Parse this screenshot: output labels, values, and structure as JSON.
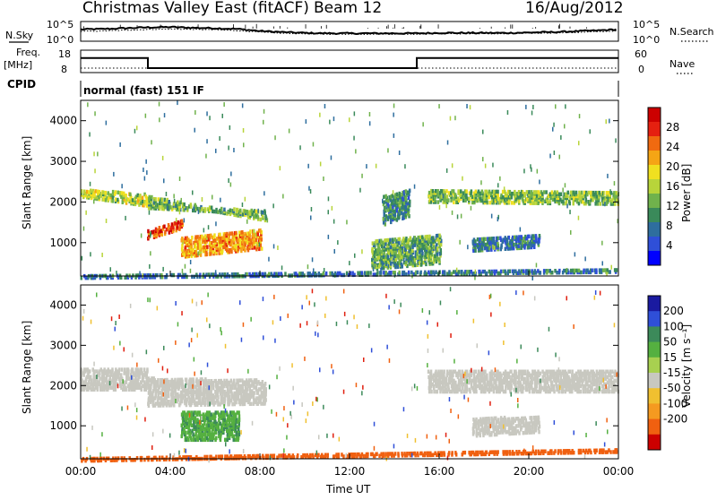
{
  "header": {
    "station": "Christmas Valley East (fitACF)",
    "beam": "Beam 12",
    "date": "16/Aug/2012"
  },
  "colors": {
    "power": [
      "#0000ff",
      "#2f4fd8",
      "#2e6e9e",
      "#3a8a5a",
      "#70b24c",
      "#b8d43a",
      "#f0e020",
      "#f5a515",
      "#f06a10",
      "#e52010",
      "#cc0000"
    ],
    "velocity": [
      "#1a1aa0",
      "#2f4fd8",
      "#3c8a5a",
      "#55b040",
      "#a8d050",
      "#c8c8c0",
      "#c0c0b8",
      "#f0c030",
      "#f59a20",
      "#f06010",
      "#e02010",
      "#cc0000"
    ]
  },
  "chart_data": [
    {
      "name": "sky-search-noise",
      "type": "line",
      "left_label": "N.Sky",
      "right_label": "N.Search",
      "y_ticks_left": [
        "10^5",
        "10^0"
      ],
      "y_ticks_right": [
        "10^5",
        "10^0"
      ],
      "x_hours": [
        0,
        1,
        2,
        3,
        4,
        5,
        6,
        7,
        8,
        9,
        10,
        11,
        12,
        13,
        14,
        15,
        16,
        17,
        18,
        19,
        20,
        21,
        22,
        23,
        24
      ],
      "sky_log": [
        3.0,
        3.1,
        3.3,
        3.5,
        3.6,
        3.4,
        3.3,
        3.1,
        2.6,
        2.3,
        2.1,
        2.0,
        2.0,
        2.0,
        2.0,
        2.0,
        2.1,
        2.1,
        2.1,
        2.1,
        2.2,
        2.3,
        2.5,
        2.7,
        3.0
      ],
      "search_log": [
        2.5,
        2.6,
        2.8,
        3.0,
        3.1,
        3.0,
        2.9,
        2.7,
        2.3,
        2.0,
        1.9,
        1.8,
        1.8,
        1.8,
        1.8,
        1.8,
        1.9,
        1.9,
        1.9,
        1.9,
        2.0,
        2.1,
        2.2,
        2.4,
        2.6
      ],
      "ylim": [
        0,
        5
      ]
    },
    {
      "name": "frequency-nave",
      "type": "line",
      "left_label_1": "Freq.",
      "left_label_2": "[MHz]",
      "right_label": "Nave",
      "y_ticks_left": [
        "18",
        "8"
      ],
      "y_ticks_right": [
        "60",
        "0"
      ],
      "freq_steps": [
        {
          "x0": 0,
          "x1": 3,
          "v": 14.5
        },
        {
          "x0": 3,
          "x1": 15,
          "v": 10.0
        },
        {
          "x0": 15,
          "x1": 24,
          "v": 14.5
        }
      ],
      "nave_level": 12,
      "freq_ylim": [
        8,
        18
      ],
      "nave_ylim": [
        0,
        60
      ]
    },
    {
      "name": "cpid",
      "type": "table",
      "label": "CPID",
      "value": "normal (fast) 151 IF"
    },
    {
      "name": "power",
      "type": "heatmap",
      "ylabel": "Slant Range [km]",
      "colorbar_label": "Power [dB]",
      "y_ticks": [
        1000,
        2000,
        3000,
        4000
      ],
      "ylim": [
        180,
        4500
      ],
      "colorbar_ticks": [
        "4",
        "8",
        "12",
        "16",
        "20",
        "24",
        "28"
      ],
      "colorbar_range": [
        0,
        32
      ],
      "bands": [
        {
          "t0": 0.0,
          "t1": 3.0,
          "r0": 2180,
          "r1": 2280,
          "r2": 1950,
          "r3": 2150,
          "p": 16
        },
        {
          "t0": 3.0,
          "t1": 8.2,
          "r0": 2100,
          "r1": 1900,
          "r2": 1600,
          "r3": 1750,
          "p": 13
        },
        {
          "t0": 3.0,
          "t1": 4.5,
          "r0": 1150,
          "r1": 1300,
          "r2": 1400,
          "r3": 1500,
          "p": 26
        },
        {
          "t0": 4.5,
          "t1": 8.0,
          "r0": 700,
          "r1": 1100,
          "r2": 900,
          "r3": 1300,
          "p": 22
        },
        {
          "t0": 15.5,
          "t1": 24.0,
          "r0": 2050,
          "r1": 2250,
          "r2": 2000,
          "r3": 2200,
          "p": 14
        },
        {
          "t0": 13.5,
          "t1": 14.6,
          "r0": 1500,
          "r1": 2100,
          "r2": 1700,
          "r3": 2250,
          "p": 10
        },
        {
          "t0": 13.0,
          "t1": 16.0,
          "r0": 400,
          "r1": 1000,
          "r2": 550,
          "r3": 1150,
          "p": 12
        },
        {
          "t0": 17.5,
          "t1": 20.5,
          "r0": 850,
          "r1": 1050,
          "r2": 950,
          "r3": 1150,
          "p": 8
        },
        {
          "t0": 0.0,
          "t1": 24.0,
          "r0": 180,
          "r1": 180,
          "r2": 330,
          "r3": 330,
          "p": 8
        }
      ]
    },
    {
      "name": "velocity",
      "type": "heatmap",
      "ylabel": "Slant Range [km]",
      "xlabel": "Time UT",
      "colorbar_label": "Velocity [m s⁻¹]",
      "y_ticks": [
        1000,
        2000,
        3000,
        4000
      ],
      "ylim": [
        180,
        4500
      ],
      "x_ticks": [
        "00:00",
        "04:00",
        "08:00",
        "12:00",
        "16:00",
        "20:00",
        "00:00"
      ],
      "x_range_hours": [
        0,
        24
      ],
      "colorbar_ticks": [
        "200",
        "100",
        "50",
        "15",
        "-15",
        "-50",
        "-100",
        "-200"
      ],
      "bands": [
        {
          "t0": 0.0,
          "t1": 3.0,
          "r0": 1950,
          "r1": 2400,
          "r2": 1950,
          "r3": 2400,
          "v": 0
        },
        {
          "t0": 3.0,
          "t1": 8.2,
          "r0": 1550,
          "r1": 2150,
          "r2": 1600,
          "r3": 2100,
          "v": 0
        },
        {
          "t0": 4.5,
          "t1": 7.0,
          "r0": 700,
          "r1": 1300,
          "r2": 700,
          "r3": 1300,
          "v": 45
        },
        {
          "t0": 15.5,
          "t1": 24.0,
          "r0": 1900,
          "r1": 2350,
          "r2": 1900,
          "r3": 2350,
          "v": 0
        },
        {
          "t0": 17.5,
          "t1": 20.5,
          "r0": 800,
          "r1": 1150,
          "r2": 900,
          "r3": 1200,
          "v": -5
        },
        {
          "t0": 0.0,
          "t1": 24.0,
          "r0": 180,
          "r1": 180,
          "r2": 400,
          "r3": 400,
          "v": -60
        }
      ]
    }
  ]
}
